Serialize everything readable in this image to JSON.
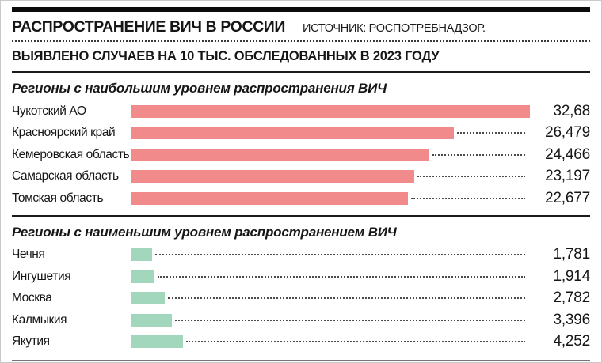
{
  "header": {
    "title": "РАСПРОСТРАНЕНИЕ ВИЧ В РОССИИ",
    "source": "ИСТОЧНИК: РОСПОТРЕБНАДЗОР.",
    "subtitle": "ВЫЯВЛЕНО СЛУЧАЕВ НА 10 ТЫС. ОБСЛЕДОВАННЫХ В 2023 ГОДУ"
  },
  "colors": {
    "bar_high": "#F18A8A",
    "bar_low": "#A2D7BE",
    "leader_dots": "#4a4a4a",
    "rule_dark": "#1a1a1a",
    "rule_gray": "#757575"
  },
  "chart_data": [
    {
      "type": "bar",
      "orientation": "horizontal",
      "title": "Регионы с наибольшим уровнем распространения ВИЧ",
      "categories": [
        "Чукотский АО",
        "Красноярский край",
        "Кемеровская область",
        "Самарская область",
        "Томская область"
      ],
      "values": [
        32.68,
        26.479,
        24.466,
        23.197,
        22.677
      ],
      "value_labels": [
        "32,68",
        "26,479",
        "24,466",
        "23,197",
        "22,677"
      ],
      "bar_color": "#F18A8A",
      "xlim": [
        0,
        32.68
      ],
      "grid": false,
      "legend": false
    },
    {
      "type": "bar",
      "orientation": "horizontal",
      "title": "Регионы с наименьшим уровнем распространением ВИЧ",
      "categories": [
        "Чечня",
        "Ингушетия",
        "Москва",
        "Калмыкия",
        "Якутия"
      ],
      "values": [
        1.781,
        1.914,
        2.782,
        3.396,
        4.252
      ],
      "value_labels": [
        "1,781",
        "1,914",
        "2,782",
        "3,396",
        "4,252"
      ],
      "bar_color": "#A2D7BE",
      "xlim": [
        0,
        32.68
      ],
      "grid": false,
      "legend": false
    }
  ]
}
